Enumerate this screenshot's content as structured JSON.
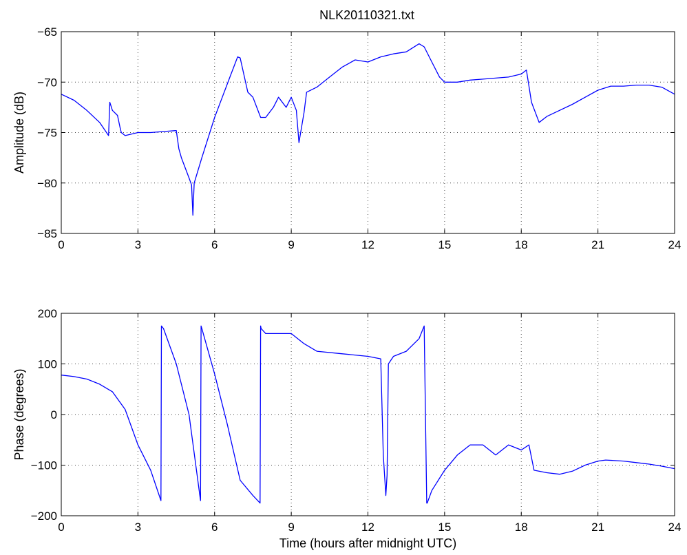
{
  "chart_data": [
    {
      "type": "line",
      "title": "NLK20110321.txt",
      "xlabel": "",
      "ylabel": "Amplitude (dB)",
      "xlim": [
        0,
        24
      ],
      "ylim": [
        -85,
        -65
      ],
      "xticks": [
        "0",
        "3",
        "6",
        "9",
        "12",
        "15",
        "18",
        "21",
        "24"
      ],
      "yticks": [
        "−65",
        "−70",
        "−75",
        "−80",
        "−85"
      ],
      "grid": true,
      "color": "#0000ff",
      "series": [
        {
          "x": [
            0,
            0.5,
            1.0,
            1.5,
            1.85,
            1.9,
            2.0,
            2.2,
            2.3,
            2.35,
            2.5,
            3.0,
            3.5,
            4.0,
            4.5,
            4.6,
            4.7,
            5.0,
            5.1,
            5.15,
            5.2,
            5.5,
            6.0,
            6.3,
            6.6,
            6.9,
            7.0,
            7.3,
            7.5,
            7.8,
            8.0,
            8.3,
            8.5,
            8.8,
            9.0,
            9.2,
            9.3,
            9.5,
            9.6,
            10.0,
            10.5,
            11.0,
            11.5,
            12.0,
            12.5,
            13.0,
            13.5,
            14.0,
            14.2,
            14.5,
            14.8,
            15.0,
            15.5,
            16.0,
            16.5,
            17.0,
            17.5,
            18.0,
            18.2,
            18.4,
            18.7,
            19.0,
            19.5,
            20.0,
            20.5,
            21.0,
            21.5,
            22.0,
            22.5,
            23.0,
            23.5,
            24.0
          ],
          "y": [
            -71.2,
            -71.8,
            -72.8,
            -74.0,
            -75.3,
            -72.0,
            -72.8,
            -73.3,
            -74.5,
            -75.0,
            -75.3,
            -75.0,
            -75.0,
            -74.9,
            -74.8,
            -76.6,
            -77.5,
            -79.5,
            -80.2,
            -83.2,
            -80.0,
            -77.5,
            -73.5,
            -71.5,
            -69.5,
            -67.5,
            -67.6,
            -71.0,
            -71.5,
            -73.5,
            -73.5,
            -72.5,
            -71.5,
            -72.5,
            -71.5,
            -72.8,
            -76.0,
            -73.0,
            -71.0,
            -70.5,
            -69.5,
            -68.5,
            -67.8,
            -68.0,
            -67.5,
            -67.2,
            -67.0,
            -66.2,
            -66.5,
            -68.0,
            -69.5,
            -70.0,
            -70.0,
            -69.8,
            -69.7,
            -69.6,
            -69.5,
            -69.2,
            -68.8,
            -72.0,
            -74.0,
            -73.4,
            -72.8,
            -72.2,
            -71.5,
            -70.8,
            -70.4,
            -70.4,
            -70.3,
            -70.3,
            -70.5,
            -71.2
          ]
        }
      ]
    },
    {
      "type": "line",
      "title": "",
      "xlabel": "Time (hours after midnight UTC)",
      "ylabel": "Phase (degrees)",
      "xlim": [
        0,
        24
      ],
      "ylim": [
        -200,
        200
      ],
      "xticks": [
        "0",
        "3",
        "6",
        "9",
        "12",
        "15",
        "18",
        "21",
        "24"
      ],
      "yticks": [
        "200",
        "100",
        "0",
        "−100",
        "−200"
      ],
      "grid": true,
      "color": "#0000ff",
      "series": [
        {
          "x": [
            0,
            0.5,
            1.0,
            1.5,
            2.0,
            2.5,
            3.0,
            3.5,
            3.9,
            3.92,
            4.0,
            4.5,
            5.0,
            5.45,
            5.47,
            5.5,
            6.0,
            6.5,
            7.0,
            7.5,
            7.78,
            7.8,
            7.82,
            8.0,
            9.0,
            9.5,
            10.0,
            11.0,
            12.0,
            12.5,
            12.6,
            12.7,
            12.75,
            12.8,
            13.0,
            13.5,
            14.0,
            14.2,
            14.3,
            14.32,
            14.5,
            15.0,
            15.5,
            16.0,
            16.5,
            17.0,
            17.5,
            18.0,
            18.3,
            18.5,
            19.0,
            19.5,
            20.0,
            20.5,
            21.0,
            21.3,
            22.0,
            22.5,
            23.0,
            23.5,
            24.0
          ],
          "y": [
            78,
            75,
            70,
            60,
            45,
            10,
            -60,
            -110,
            -170,
            175,
            170,
            100,
            0,
            -170,
            175,
            170,
            80,
            -20,
            -130,
            -160,
            -175,
            175,
            170,
            160,
            160,
            140,
            125,
            120,
            115,
            110,
            -80,
            -160,
            -120,
            100,
            115,
            125,
            150,
            175,
            -175,
            -175,
            -150,
            -110,
            -80,
            -60,
            -60,
            -80,
            -60,
            -70,
            -60,
            -110,
            -115,
            -118,
            -112,
            -100,
            -92,
            -90,
            -92,
            -95,
            -98,
            -102,
            -107
          ]
        }
      ]
    }
  ]
}
